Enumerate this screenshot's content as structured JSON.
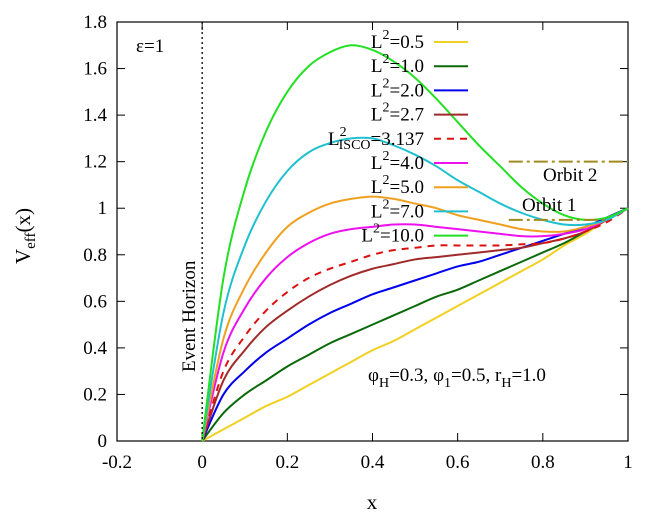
{
  "chart_data": {
    "type": "line",
    "xlabel": "x",
    "ylabel_main": "V",
    "ylabel_sub": "eff",
    "ylabel_tail": "(x)",
    "xlim": [
      -0.2,
      1.0
    ],
    "ylim": [
      0,
      1.8
    ],
    "grid": false,
    "legend_position": "top-center",
    "x_ticks": [
      "-0.2",
      "0",
      "0.2",
      "0.4",
      "0.6",
      "0.8",
      "1"
    ],
    "y_ticks": [
      "0",
      "0.2",
      "0.4",
      "0.6",
      "0.8",
      "1",
      "1.2",
      "1.4",
      "1.6",
      "1.8"
    ],
    "annotations": {
      "epsilon": "ε=1",
      "event_horizon": "Event Horizon",
      "params": "φ_H=0.3, φ_1=0.5, r_H=1.0",
      "params_parts": {
        "phi": "φ",
        "H": "H",
        "eq1": "=0.3, ",
        "phi1": "φ",
        "one": "1",
        "eq2": "=0.5, r",
        "rH": "H",
        "eq3": "=1.0"
      },
      "orbit1": "Orbit 1",
      "orbit2": "Orbit 2"
    },
    "reference_lines": [
      {
        "name": "Orbit 2",
        "y": 1.2,
        "x_range": [
          0.72,
          1.0
        ],
        "color": "#a08b1e"
      },
      {
        "name": "Orbit 1",
        "y": 0.95,
        "x_range": [
          0.72,
          0.95
        ],
        "color": "#a08b1e"
      }
    ],
    "event_horizon_x": 0,
    "series": [
      {
        "L2": "0.5",
        "label_sup": "2",
        "label_main": "L",
        "label_val": "=0.5",
        "color": "#f0d020",
        "dash": false,
        "x": [
          0,
          0.05,
          0.1,
          0.15,
          0.2,
          0.25,
          0.3,
          0.35,
          0.4,
          0.45,
          0.5,
          0.55,
          0.6,
          0.65,
          0.7,
          0.75,
          0.8,
          0.85,
          0.9,
          0.95,
          1.0
        ],
        "y": [
          0,
          0.05,
          0.1,
          0.15,
          0.19,
          0.24,
          0.29,
          0.34,
          0.39,
          0.43,
          0.48,
          0.53,
          0.58,
          0.63,
          0.68,
          0.73,
          0.78,
          0.84,
          0.89,
          0.95,
          1.0
        ]
      },
      {
        "L2": "1.0",
        "label_sup": "2",
        "label_main": "L",
        "label_val": "=1.0",
        "color": "#0a6a0a",
        "dash": false,
        "x": [
          0,
          0.05,
          0.1,
          0.15,
          0.2,
          0.25,
          0.3,
          0.35,
          0.4,
          0.45,
          0.5,
          0.55,
          0.6,
          0.65,
          0.7,
          0.75,
          0.8,
          0.85,
          0.9,
          0.95,
          1.0
        ],
        "y": [
          0,
          0.12,
          0.2,
          0.26,
          0.32,
          0.37,
          0.42,
          0.46,
          0.5,
          0.54,
          0.58,
          0.62,
          0.65,
          0.69,
          0.73,
          0.77,
          0.81,
          0.85,
          0.9,
          0.95,
          1.0
        ]
      },
      {
        "L2": "2.0",
        "label_sup": "2",
        "label_main": "L",
        "label_val": "=2.0",
        "color": "#0000ee",
        "dash": false,
        "x": [
          0,
          0.05,
          0.1,
          0.15,
          0.2,
          0.25,
          0.3,
          0.35,
          0.4,
          0.45,
          0.5,
          0.55,
          0.6,
          0.65,
          0.7,
          0.75,
          0.8,
          0.85,
          0.9,
          0.95,
          1.0
        ],
        "y": [
          0,
          0.2,
          0.3,
          0.38,
          0.44,
          0.5,
          0.55,
          0.59,
          0.63,
          0.66,
          0.69,
          0.72,
          0.75,
          0.77,
          0.8,
          0.83,
          0.86,
          0.89,
          0.92,
          0.96,
          1.0
        ]
      },
      {
        "L2": "2.7",
        "label_sup": "2",
        "label_main": "L",
        "label_val": "=2.7",
        "color": "#a02a2a",
        "dash": false,
        "x": [
          0,
          0.05,
          0.1,
          0.15,
          0.2,
          0.25,
          0.3,
          0.35,
          0.4,
          0.45,
          0.5,
          0.55,
          0.6,
          0.65,
          0.7,
          0.75,
          0.8,
          0.85,
          0.9,
          0.95,
          1.0
        ],
        "y": [
          0,
          0.26,
          0.39,
          0.49,
          0.56,
          0.62,
          0.67,
          0.71,
          0.74,
          0.76,
          0.78,
          0.79,
          0.8,
          0.81,
          0.82,
          0.83,
          0.85,
          0.87,
          0.9,
          0.95,
          1.0
        ]
      },
      {
        "L2": "3.137",
        "label_sup": "2",
        "label_main": "L",
        "label_sub": "ISCO",
        "label_val": "=3.137",
        "color": "#dd1010",
        "dash": true,
        "x": [
          0,
          0.05,
          0.1,
          0.15,
          0.2,
          0.25,
          0.3,
          0.35,
          0.4,
          0.45,
          0.5,
          0.55,
          0.6,
          0.65,
          0.7,
          0.75,
          0.8,
          0.85,
          0.9,
          0.95,
          1.0
        ],
        "y": [
          0,
          0.3,
          0.45,
          0.56,
          0.64,
          0.7,
          0.74,
          0.77,
          0.8,
          0.82,
          0.83,
          0.84,
          0.84,
          0.84,
          0.84,
          0.845,
          0.85,
          0.87,
          0.9,
          0.94,
          1.0
        ]
      },
      {
        "L2": "4.0",
        "label_sup": "2",
        "label_main": "L",
        "label_val": "=4.0",
        "color": "#ee10ee",
        "dash": false,
        "x": [
          0,
          0.05,
          0.1,
          0.15,
          0.2,
          0.25,
          0.3,
          0.35,
          0.4,
          0.45,
          0.5,
          0.55,
          0.6,
          0.65,
          0.7,
          0.75,
          0.8,
          0.85,
          0.9,
          0.95,
          1.0
        ],
        "y": [
          0,
          0.38,
          0.57,
          0.7,
          0.79,
          0.85,
          0.89,
          0.91,
          0.92,
          0.93,
          0.93,
          0.92,
          0.91,
          0.9,
          0.89,
          0.88,
          0.88,
          0.89,
          0.91,
          0.95,
          1.0
        ]
      },
      {
        "L2": "5.0",
        "label_sup": "2",
        "label_main": "L",
        "label_val": "=5.0",
        "color": "#f0a020",
        "dash": false,
        "x": [
          0,
          0.05,
          0.1,
          0.15,
          0.2,
          0.25,
          0.3,
          0.35,
          0.4,
          0.45,
          0.5,
          0.55,
          0.6,
          0.65,
          0.7,
          0.75,
          0.8,
          0.85,
          0.9,
          0.95,
          1.0
        ],
        "y": [
          0,
          0.44,
          0.66,
          0.81,
          0.92,
          0.98,
          1.02,
          1.04,
          1.05,
          1.04,
          1.02,
          1.0,
          0.97,
          0.95,
          0.93,
          0.91,
          0.9,
          0.9,
          0.92,
          0.95,
          1.0
        ]
      },
      {
        "L2": "7.0",
        "label_sup": "2",
        "label_main": "L",
        "label_val": "=7.0",
        "color": "#20c0d0",
        "dash": false,
        "x": [
          0,
          0.05,
          0.1,
          0.15,
          0.2,
          0.25,
          0.3,
          0.35,
          0.4,
          0.45,
          0.5,
          0.55,
          0.6,
          0.65,
          0.7,
          0.75,
          0.8,
          0.85,
          0.9,
          0.95,
          1.0
        ],
        "y": [
          0,
          0.55,
          0.84,
          1.03,
          1.16,
          1.24,
          1.28,
          1.3,
          1.3,
          1.27,
          1.23,
          1.18,
          1.12,
          1.07,
          1.02,
          0.98,
          0.95,
          0.93,
          0.93,
          0.95,
          1.0
        ]
      },
      {
        "L2": "10.0",
        "label_sup": "2",
        "label_main": "L",
        "label_val": "=10.0",
        "color": "#22e022",
        "dash": false,
        "x": [
          0,
          0.05,
          0.1,
          0.15,
          0.2,
          0.25,
          0.3,
          0.35,
          0.4,
          0.45,
          0.5,
          0.55,
          0.6,
          0.65,
          0.7,
          0.75,
          0.8,
          0.85,
          0.9,
          0.95,
          1.0
        ],
        "y": [
          0,
          0.7,
          1.08,
          1.33,
          1.5,
          1.61,
          1.67,
          1.7,
          1.68,
          1.63,
          1.56,
          1.47,
          1.37,
          1.27,
          1.18,
          1.09,
          1.02,
          0.97,
          0.95,
          0.96,
          1.0
        ]
      }
    ]
  }
}
